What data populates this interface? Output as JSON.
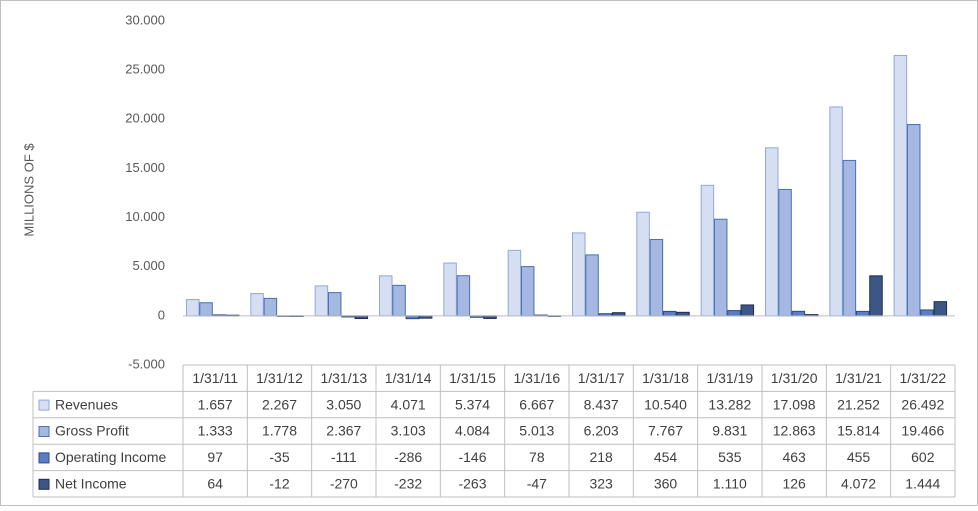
{
  "chart_data": {
    "type": "bar",
    "y_label": "MILLIONS OF $",
    "categories": [
      "1/31/11",
      "1/31/12",
      "1/31/13",
      "1/31/14",
      "1/31/15",
      "1/31/16",
      "1/31/17",
      "1/31/18",
      "1/31/19",
      "1/31/20",
      "1/31/21",
      "1/31/22"
    ],
    "series": [
      {
        "name": "Revenues",
        "color": "#d6dff2",
        "stroke": "#8ea9db",
        "values": [
          1657,
          2267,
          3050,
          4071,
          5374,
          6667,
          8437,
          10540,
          13282,
          17098,
          21252,
          26492
        ],
        "value_labels": [
          "1.657",
          "2.267",
          "3.050",
          "4.071",
          "5.374",
          "6.667",
          "8.437",
          "10.540",
          "13.282",
          "17.098",
          "21.252",
          "26.492"
        ]
      },
      {
        "name": "Gross Profit",
        "color": "#a4b8e2",
        "stroke": "#4a6fb5",
        "values": [
          1333,
          1778,
          2367,
          3103,
          4084,
          5013,
          6203,
          7767,
          9831,
          12863,
          15814,
          19466
        ],
        "value_labels": [
          "1.333",
          "1.778",
          "2.367",
          "3.103",
          "4.084",
          "5.013",
          "6.203",
          "7.767",
          "9.831",
          "12.863",
          "15.814",
          "19.466"
        ]
      },
      {
        "name": "Operating Income",
        "color": "#5a7dc4",
        "stroke": "#2c4a8a",
        "values": [
          97,
          -35,
          -111,
          -286,
          -146,
          78,
          218,
          454,
          535,
          463,
          455,
          602
        ],
        "value_labels": [
          "97",
          "-35",
          "-111",
          "-286",
          "-146",
          "78",
          "218",
          "454",
          "535",
          "463",
          "455",
          "602"
        ]
      },
      {
        "name": "Net Income",
        "color": "#3d5688",
        "stroke": "#1c2c50",
        "values": [
          64,
          -12,
          -270,
          -232,
          -263,
          -47,
          323,
          360,
          1110,
          126,
          4072,
          1444
        ],
        "value_labels": [
          "64",
          "-12",
          "-270",
          "-232",
          "-263",
          "-47",
          "323",
          "360",
          "1.110",
          "126",
          "4.072",
          "1.444"
        ]
      }
    ],
    "ylim": [
      -5000,
      30000
    ],
    "yticks": [
      {
        "value": -5000,
        "label": "-5.000"
      },
      0,
      {
        "value": 5000,
        "label": "5.000"
      },
      {
        "value": 10000,
        "label": "10.000"
      },
      {
        "value": 15000,
        "label": "15.000"
      },
      {
        "value": 20000,
        "label": "20.000"
      },
      {
        "value": 25000,
        "label": "25.000"
      },
      {
        "value": 30000,
        "label": "30.000"
      }
    ],
    "grid": false
  }
}
